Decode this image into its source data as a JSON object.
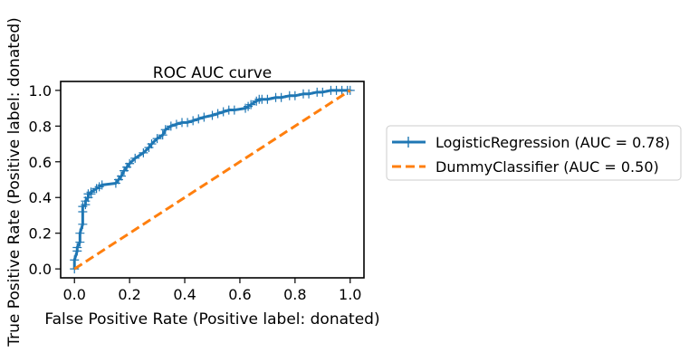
{
  "chart_data": {
    "type": "line",
    "title": "ROC AUC curve",
    "xlabel": "False Positive Rate (Positive label: donated)",
    "ylabel": "True Positive Rate (Positive label: donated)",
    "xlim": [
      -0.05,
      1.05
    ],
    "ylim": [
      -0.05,
      1.05
    ],
    "xticks": [
      0.0,
      0.2,
      0.4,
      0.6,
      0.8,
      1.0
    ],
    "xtick_labels": [
      "0.0",
      "0.2",
      "0.4",
      "0.6",
      "0.8",
      "1.0"
    ],
    "yticks": [
      0.0,
      0.2,
      0.4,
      0.6,
      0.8,
      1.0
    ],
    "ytick_labels": [
      "0.0",
      "0.2",
      "0.4",
      "0.6",
      "0.8",
      "1.0"
    ],
    "grid": false,
    "legend_position": "outside-right",
    "series": [
      {
        "name": "LogisticRegression (AUC = 0.78)",
        "color": "#1f77b4",
        "style": "solid",
        "marker": "+",
        "x": [
          0.0,
          0.0,
          0.01,
          0.01,
          0.02,
          0.02,
          0.03,
          0.03,
          0.03,
          0.04,
          0.04,
          0.05,
          0.05,
          0.06,
          0.06,
          0.08,
          0.09,
          0.1,
          0.15,
          0.16,
          0.17,
          0.18,
          0.19,
          0.2,
          0.22,
          0.25,
          0.27,
          0.28,
          0.3,
          0.32,
          0.33,
          0.35,
          0.37,
          0.39,
          0.41,
          0.43,
          0.45,
          0.47,
          0.5,
          0.52,
          0.54,
          0.56,
          0.58,
          0.62,
          0.63,
          0.64,
          0.66,
          0.67,
          0.68,
          0.7,
          0.73,
          0.75,
          0.78,
          0.8,
          0.83,
          0.85,
          0.88,
          0.9,
          0.93,
          0.95,
          0.97,
          0.99,
          1.0
        ],
        "y": [
          0.0,
          0.05,
          0.1,
          0.12,
          0.15,
          0.2,
          0.25,
          0.32,
          0.35,
          0.36,
          0.38,
          0.4,
          0.42,
          0.42,
          0.43,
          0.45,
          0.46,
          0.47,
          0.48,
          0.5,
          0.52,
          0.55,
          0.57,
          0.59,
          0.62,
          0.65,
          0.68,
          0.7,
          0.73,
          0.75,
          0.78,
          0.8,
          0.81,
          0.82,
          0.82,
          0.83,
          0.84,
          0.85,
          0.86,
          0.87,
          0.88,
          0.89,
          0.89,
          0.9,
          0.91,
          0.92,
          0.94,
          0.95,
          0.95,
          0.95,
          0.96,
          0.96,
          0.97,
          0.97,
          0.98,
          0.98,
          0.99,
          0.99,
          1.0,
          1.0,
          1.0,
          1.0,
          1.0
        ]
      },
      {
        "name": "DummyClassifier (AUC = 0.50)",
        "color": "#ff7f0e",
        "style": "dashed",
        "marker": "none",
        "x": [
          0.0,
          1.0
        ],
        "y": [
          0.0,
          1.0
        ]
      }
    ]
  }
}
